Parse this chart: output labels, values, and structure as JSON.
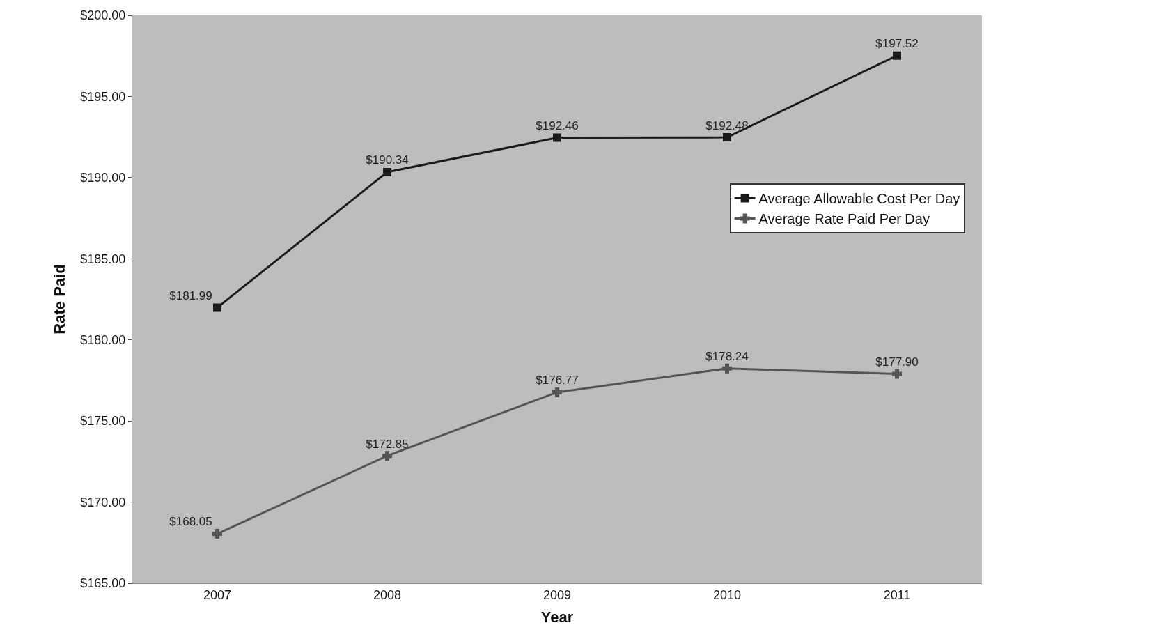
{
  "chart_data": {
    "type": "line",
    "xlabel": "Year",
    "ylabel": "Rate Paid",
    "categories": [
      "2007",
      "2008",
      "2009",
      "2010",
      "2011"
    ],
    "series": [
      {
        "name": "Average Allowable Cost Per Day",
        "color": "#1a1a1a",
        "marker": "square",
        "values": [
          181.99,
          190.34,
          192.46,
          192.48,
          197.52
        ],
        "value_labels": [
          "$181.99",
          "$190.34",
          "$192.46",
          "$192.48",
          "$197.52"
        ]
      },
      {
        "name": "Average Rate Paid Per Day",
        "color": "#555555",
        "marker": "cross",
        "values": [
          168.05,
          172.85,
          176.77,
          178.24,
          177.9
        ],
        "value_labels": [
          "$168.05",
          "$172.85",
          "$176.77",
          "$178.24",
          "$177.90"
        ]
      }
    ],
    "ylim": [
      165,
      200
    ],
    "yticks": [
      {
        "value": 165,
        "label": "$165.00"
      },
      {
        "value": 170,
        "label": "$170.00"
      },
      {
        "value": 175,
        "label": "$175.00"
      },
      {
        "value": 180,
        "label": "$180.00"
      },
      {
        "value": 185,
        "label": "$185.00"
      },
      {
        "value": 190,
        "label": "$190.00"
      },
      {
        "value": 195,
        "label": "$195.00"
      },
      {
        "value": 200,
        "label": "$200.00"
      }
    ],
    "legend": "right",
    "grid": false,
    "line_style": "solid"
  }
}
